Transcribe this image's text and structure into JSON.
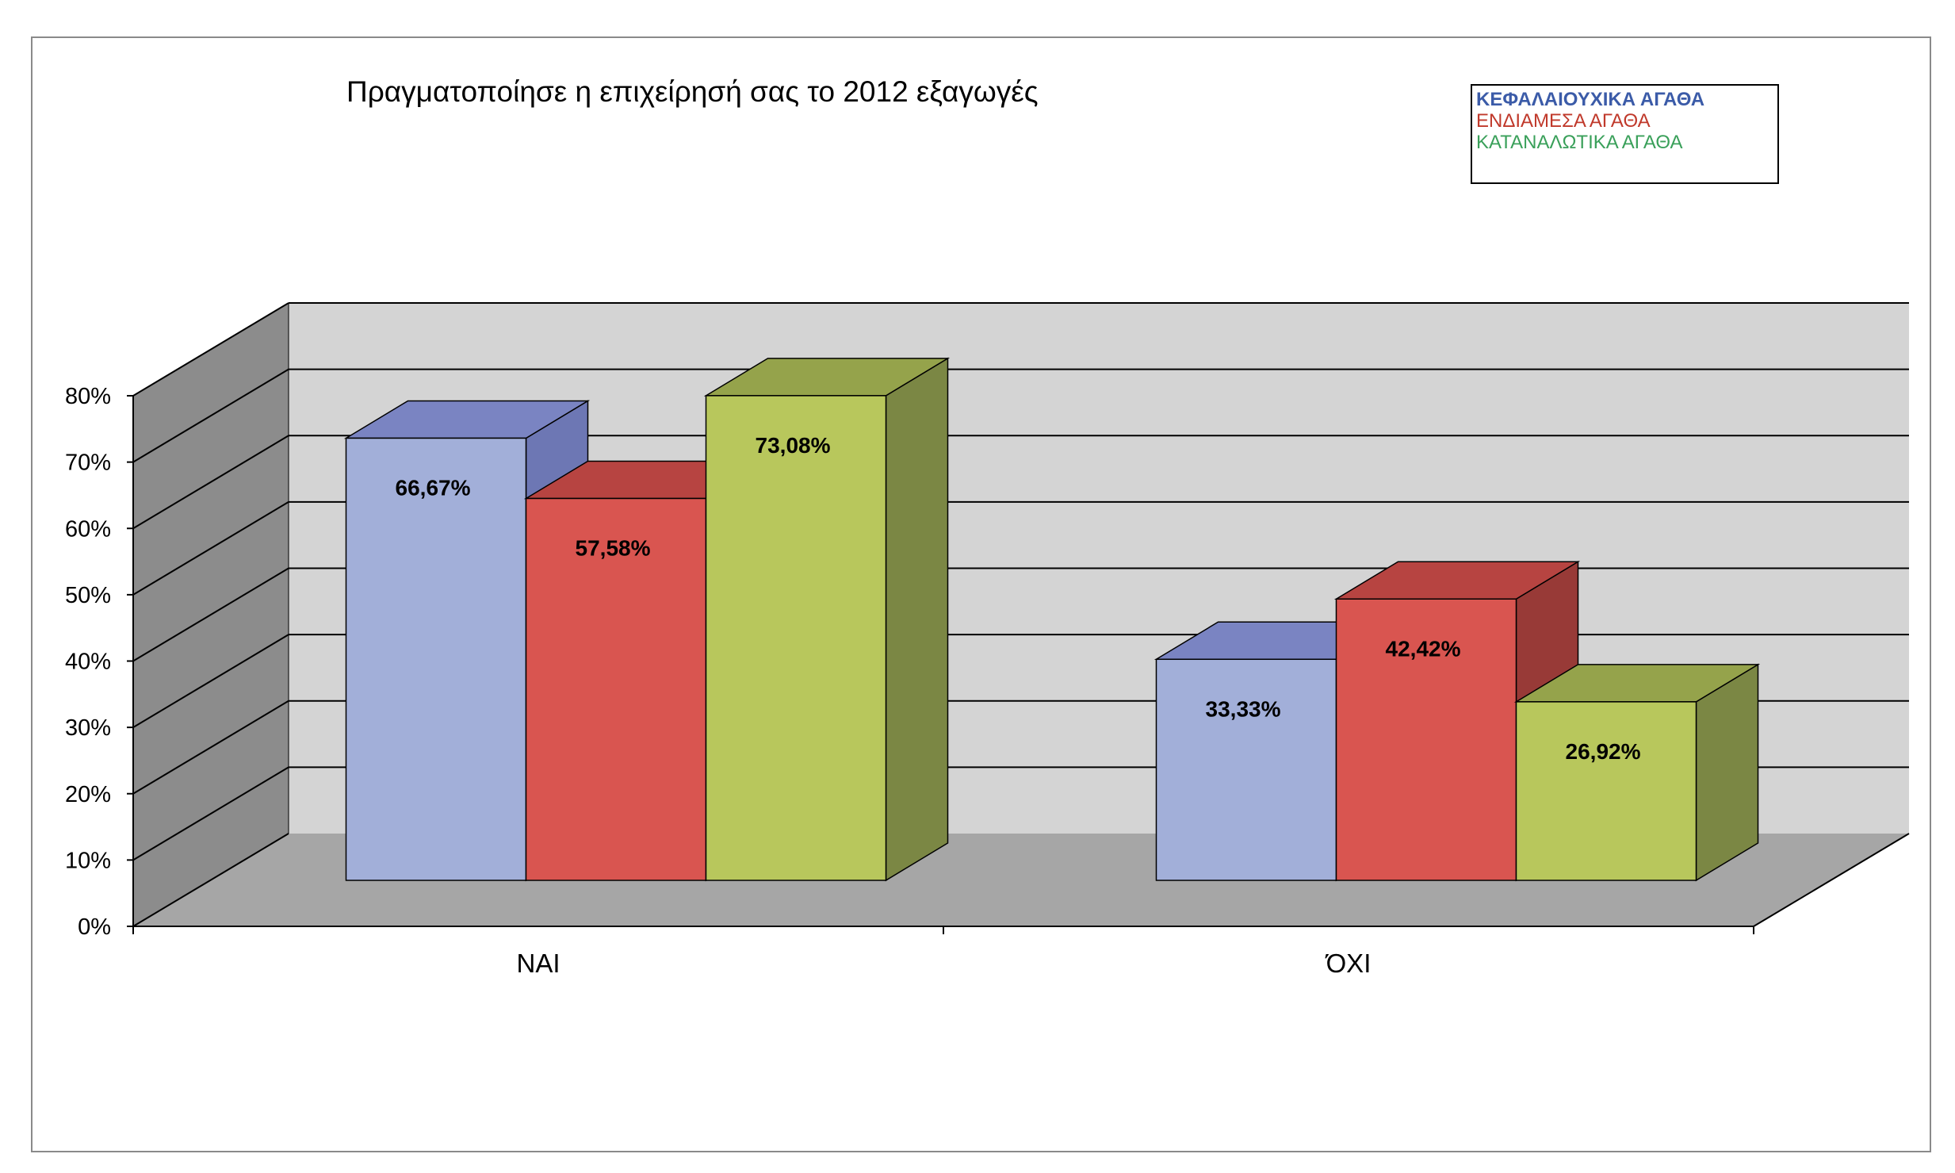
{
  "chart_data": {
    "type": "bar",
    "title": "Πραγματοποίησε η επιχείρησή σας το 2012 εξαγωγές",
    "categories": [
      "ΝΑΙ",
      "ΌΧΙ"
    ],
    "series": [
      {
        "name": "ΚΕΦΑΛΑΙΟΥΧΙΚΑ ΑΓΑΘΑ",
        "values": [
          66.67,
          33.33
        ],
        "labels": [
          "66,67%",
          "33,33%"
        ],
        "color": "#a2afd9",
        "top_color": "#7a84c2",
        "side_color": "#6d77b4",
        "legend_color": "#3b5ba8",
        "legend_bold": true
      },
      {
        "name": "ΕΝΔΙΑΜΕΣΑ ΑΓΑΘΑ",
        "values": [
          57.58,
          42.42
        ],
        "labels": [
          "57,58%",
          "42,42%"
        ],
        "color": "#d95550",
        "top_color": "#b74441",
        "side_color": "#983a37",
        "legend_color": "#c0392b",
        "legend_bold": false
      },
      {
        "name": "ΚΑΤΑΝΑΛΩΤΙΚΑ ΑΓΑΘΑ",
        "values": [
          73.08,
          26.92
        ],
        "labels": [
          "73,08%",
          "26,92%"
        ],
        "color": "#b8c75c",
        "top_color": "#95a34b",
        "side_color": "#7b8744",
        "legend_color": "#3aa05a",
        "legend_bold": false
      }
    ],
    "ylim": [
      0,
      80
    ],
    "yticks": [
      0,
      10,
      20,
      30,
      40,
      50,
      60,
      70,
      80
    ],
    "ytick_labels": [
      "0%",
      "10%",
      "20%",
      "30%",
      "40%",
      "50%",
      "60%",
      "70%",
      "80%"
    ],
    "grid": true,
    "legend_position": "top-right",
    "xlabel": "",
    "ylabel": ""
  }
}
